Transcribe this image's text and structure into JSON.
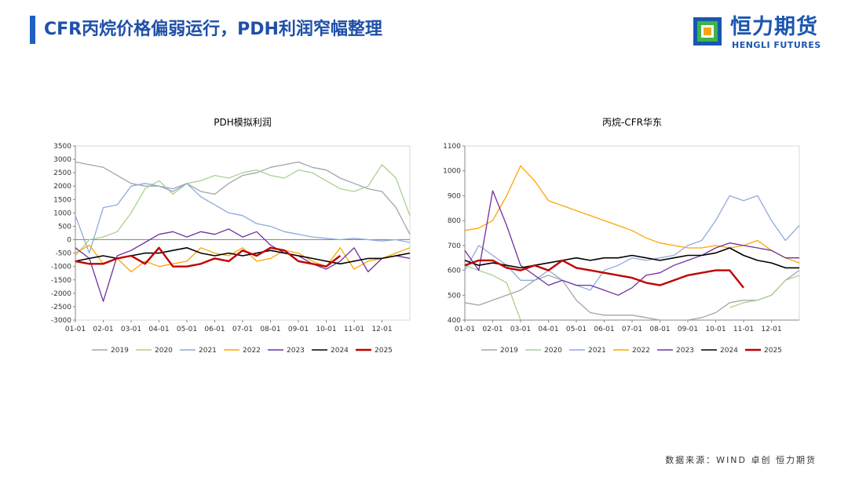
{
  "header": {
    "title": "CFR丙烷价格偏弱运行，PDH利润窄幅整理"
  },
  "logo": {
    "cn": "恒力期货",
    "en": "HENGLI FUTURES"
  },
  "source": "数据来源：WIND 卓创 恒力期货",
  "colors": {
    "title": "#1f4fa8",
    "accent": "#1f5fbf",
    "s2019": "#a5a5a5",
    "s2020": "#a9d18e",
    "s2021": "#8faadc",
    "s2022": "#ffa500",
    "s2023": "#7030a0",
    "s2024": "#000000",
    "s2025": "#c00000"
  },
  "chart_data": [
    {
      "type": "line",
      "title": "PDH模拟利润",
      "xlabel": "",
      "ylabel": "",
      "ylim": [
        -3000,
        3500
      ],
      "yticks": [
        -3000,
        -2500,
        -2000,
        -1500,
        -1000,
        -500,
        0,
        500,
        1000,
        1500,
        2000,
        2500,
        3000,
        3500
      ],
      "x": [
        0,
        1,
        2,
        3,
        4,
        5,
        6,
        7,
        8,
        9,
        10,
        11,
        12,
        13,
        14,
        15,
        16,
        17,
        18,
        19,
        20,
        21,
        22,
        23,
        24
      ],
      "xlim": [
        0,
        24
      ],
      "xticks": [
        "01-01",
        "02-01",
        "03-01",
        "04-01",
        "05-01",
        "06-01",
        "07-01",
        "08-01",
        "09-01",
        "10-01",
        "11-01",
        "12-01"
      ],
      "series": [
        {
          "name": "2019",
          "values": [
            2900,
            2800,
            2700,
            2400,
            2100,
            2000,
            2000,
            1900,
            2100,
            1800,
            1700,
            2100,
            2400,
            2500,
            2700,
            2800,
            2900,
            2700,
            2600,
            2300,
            2100,
            1900,
            1800,
            1200,
            200
          ]
        },
        {
          "name": "2020",
          "values": [
            -600,
            0,
            100,
            300,
            1000,
            1900,
            2200,
            1700,
            2100,
            2200,
            2400,
            2300,
            2500,
            2600,
            2400,
            2300,
            2600,
            2500,
            2200,
            1900,
            1800,
            2000,
            2800,
            2300,
            900
          ]
        },
        {
          "name": "2021",
          "values": [
            900,
            -500,
            1200,
            1300,
            2000,
            2100,
            2000,
            1800,
            2100,
            1600,
            1300,
            1000,
            900,
            600,
            500,
            300,
            200,
            100,
            50,
            0,
            50,
            0,
            -50,
            0,
            -100
          ]
        },
        {
          "name": "2022",
          "values": [
            -500,
            -200,
            -900,
            -700,
            -1200,
            -800,
            -1000,
            -900,
            -800,
            -300,
            -500,
            -600,
            -300,
            -800,
            -700,
            -400,
            -500,
            -800,
            -1000,
            -300,
            -1100,
            -800,
            -700,
            -500,
            -300
          ]
        },
        {
          "name": "2023",
          "values": [
            -300,
            -700,
            -2300,
            -600,
            -400,
            -100,
            200,
            300,
            100,
            300,
            200,
            400,
            100,
            300,
            -200,
            -500,
            -600,
            -900,
            -1100,
            -800,
            -300,
            -1200,
            -700,
            -600,
            -700
          ]
        },
        {
          "name": "2024",
          "values": [
            -800,
            -700,
            -600,
            -700,
            -600,
            -500,
            -500,
            -400,
            -300,
            -500,
            -600,
            -500,
            -600,
            -500,
            -400,
            -500,
            -600,
            -700,
            -800,
            -900,
            -800,
            -700,
            -700,
            -600,
            -500
          ]
        },
        {
          "name": "2025",
          "values": [
            -800,
            -900,
            -900,
            -700,
            -600,
            -900,
            -300,
            -1000,
            -1000,
            -900,
            -700,
            -800,
            -400,
            -600,
            -300,
            -400,
            -800,
            -900,
            -1000,
            -600,
            null,
            null,
            null,
            null,
            null
          ]
        }
      ],
      "legend": "bottom"
    },
    {
      "type": "line",
      "title": "丙烷-CFR华东",
      "xlabel": "",
      "ylabel": "",
      "ylim": [
        400,
        1100
      ],
      "yticks": [
        400,
        500,
        600,
        700,
        800,
        900,
        1000,
        1100
      ],
      "x": [
        0,
        1,
        2,
        3,
        4,
        5,
        6,
        7,
        8,
        9,
        10,
        11,
        12,
        13,
        14,
        15,
        16,
        17,
        18,
        19,
        20,
        21,
        22,
        23,
        24
      ],
      "xlim": [
        0,
        24
      ],
      "xticks": [
        "01-01",
        "02-01",
        "03-01",
        "04-01",
        "05-01",
        "06-01",
        "07-01",
        "08-01",
        "09-01",
        "10-01",
        "11-01",
        "12-01"
      ],
      "series": [
        {
          "name": "2019",
          "values": [
            470,
            460,
            480,
            500,
            520,
            560,
            580,
            560,
            480,
            430,
            420,
            420,
            420,
            410,
            400,
            400,
            400,
            410,
            430,
            470,
            480,
            480,
            500,
            560,
            600
          ]
        },
        {
          "name": "2020",
          "values": [
            620,
            600,
            580,
            550,
            400,
            null,
            null,
            null,
            null,
            null,
            null,
            null,
            null,
            null,
            null,
            null,
            null,
            null,
            null,
            450,
            470,
            480,
            500,
            560,
            580
          ]
        },
        {
          "name": "2021",
          "values": [
            600,
            700,
            660,
            620,
            560,
            560,
            600,
            560,
            540,
            520,
            600,
            620,
            650,
            640,
            650,
            660,
            700,
            720,
            800,
            900,
            880,
            900,
            800,
            720,
            780
          ]
        },
        {
          "name": "2022",
          "values": [
            760,
            770,
            800,
            900,
            1020,
            960,
            880,
            860,
            840,
            820,
            800,
            780,
            760,
            730,
            710,
            700,
            690,
            690,
            700,
            690,
            700,
            720,
            680,
            650,
            630
          ]
        },
        {
          "name": "2023",
          "values": [
            680,
            600,
            920,
            780,
            620,
            580,
            540,
            560,
            540,
            540,
            520,
            500,
            530,
            580,
            590,
            620,
            640,
            660,
            690,
            710,
            700,
            690,
            680,
            650,
            650
          ]
        },
        {
          "name": "2024",
          "values": [
            640,
            620,
            630,
            620,
            610,
            620,
            630,
            640,
            650,
            640,
            650,
            650,
            660,
            650,
            640,
            650,
            660,
            660,
            670,
            690,
            660,
            640,
            630,
            610,
            610
          ]
        },
        {
          "name": "2025",
          "values": [
            620,
            640,
            640,
            610,
            600,
            620,
            600,
            640,
            610,
            600,
            590,
            580,
            570,
            550,
            540,
            560,
            580,
            590,
            600,
            600,
            530,
            null,
            null,
            null,
            null
          ]
        }
      ],
      "legend": "bottom"
    }
  ]
}
